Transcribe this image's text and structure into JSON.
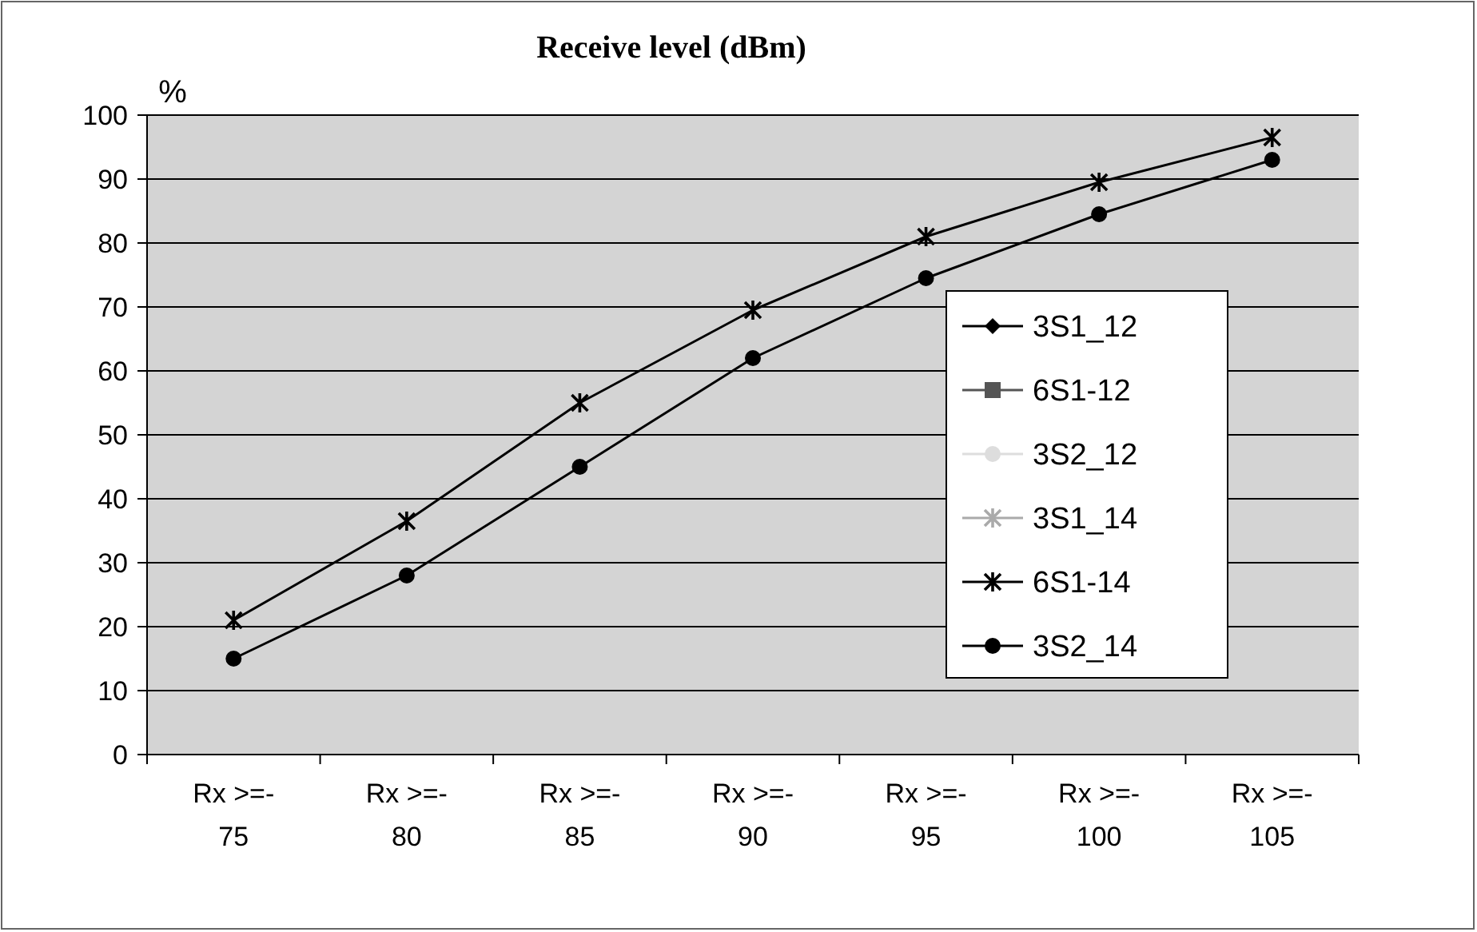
{
  "chart_data": {
    "type": "line",
    "title": "Receive level (dBm)",
    "ylabel": "%",
    "categories": [
      "Rx >=-75",
      "Rx >=-80",
      "Rx >=-85",
      "Rx >=-90",
      "Rx >=-95",
      "Rx >=-100",
      "Rx >=-105"
    ],
    "series": [
      {
        "name": "3S1_12",
        "color": "#000000",
        "marker": "diamond",
        "values": [
          null,
          null,
          null,
          null,
          null,
          null,
          null
        ]
      },
      {
        "name": "6S1-12",
        "color": "#555555",
        "marker": "square",
        "values": [
          null,
          null,
          null,
          null,
          null,
          null,
          null
        ]
      },
      {
        "name": "3S2_12",
        "color": "#dddddd",
        "marker": "circle",
        "values": [
          null,
          null,
          null,
          null,
          null,
          null,
          null
        ]
      },
      {
        "name": "3S1_14",
        "color": "#aaaaaa",
        "marker": "cross",
        "values": [
          null,
          null,
          null,
          null,
          null,
          null,
          null
        ]
      },
      {
        "name": "6S1-14",
        "color": "#000000",
        "marker": "cross",
        "values": [
          21,
          36.5,
          55,
          69.5,
          81,
          89.5,
          96.5
        ]
      },
      {
        "name": "3S2_14",
        "color": "#000000",
        "marker": "circle",
        "values": [
          15,
          28,
          45,
          62,
          74.5,
          84.5,
          93
        ]
      }
    ],
    "ylim": [
      0,
      100
    ],
    "yticks": [
      0,
      10,
      20,
      30,
      40,
      50,
      60,
      70,
      80,
      90,
      100
    ],
    "grid": "y",
    "legend": "right",
    "line_style": "solid"
  }
}
